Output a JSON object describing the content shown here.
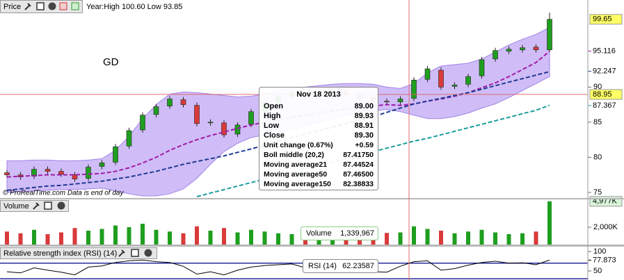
{
  "chart_data": [
    {
      "type": "candlestick",
      "title": "Price",
      "subtitle": "Year:High 100.60 Low 93.85",
      "annotation": "GD",
      "watermark": "© ProRealTime.com  Data is end of day",
      "ylim": [
        74.2,
        102.4
      ],
      "yticks": [
        75,
        80,
        85,
        90
      ],
      "up_color": "#1f9e1f",
      "down_color": "#d93a3a",
      "open": [
        77.8,
        77.5,
        77.3,
        78.3,
        78.0,
        77.5,
        77.0,
        78.7,
        79.3,
        81.6,
        83.9,
        86.1,
        87.3,
        88.2,
        87.4,
        84.9,
        84.9,
        83.3,
        84.7,
        86.6,
        87.7,
        88.7,
        89.1,
        88.8,
        89.1,
        89.2,
        88.8,
        88.5,
        88.0,
        87.9,
        88.4,
        91.1,
        92.4,
        90.1,
        90.4,
        91.6,
        94.0,
        95.1,
        95.3,
        95.7,
        95.3
      ],
      "high": [
        78.2,
        77.9,
        78.7,
        78.7,
        78.4,
        77.9,
        79.0,
        79.6,
        81.9,
        84.2,
        86.4,
        87.6,
        88.7,
        88.6,
        87.8,
        85.4,
        85.3,
        85.0,
        86.9,
        88.2,
        89.0,
        89.6,
        89.5,
        89.4,
        89.7,
        89.6,
        89.2,
        88.9,
        88.4,
        88.7,
        91.4,
        93.0,
        92.8,
        90.7,
        91.9,
        94.3,
        95.6,
        95.8,
        96.0,
        96.1,
        100.6
      ],
      "low": [
        77.1,
        76.8,
        76.9,
        77.6,
        77.2,
        76.5,
        76.6,
        78.3,
        78.9,
        81.2,
        83.5,
        85.7,
        86.9,
        87.1,
        84.4,
        84.5,
        82.8,
        82.9,
        84.3,
        86.2,
        87.3,
        88.3,
        88.3,
        88.4,
        88.7,
        88.5,
        88.0,
        87.7,
        87.5,
        87.5,
        88.0,
        90.7,
        89.6,
        89.7,
        90.0,
        91.2,
        93.6,
        94.7,
        94.9,
        94.9,
        95.0
      ],
      "close": [
        77.5,
        77.2,
        78.3,
        78.0,
        77.6,
        76.9,
        78.6,
        79.2,
        81.5,
        83.8,
        86.0,
        87.2,
        88.3,
        87.5,
        84.8,
        85.0,
        83.2,
        84.6,
        86.5,
        87.8,
        88.6,
        89.2,
        88.7,
        89.0,
        89.3,
        88.9,
        88.4,
        88.1,
        87.9,
        88.3,
        91.0,
        92.6,
        90.0,
        90.3,
        91.5,
        93.9,
        95.2,
        95.4,
        95.6,
        95.3,
        99.65
      ],
      "bands": {
        "color": "#c8b2f6",
        "edge": "#9f84e6",
        "upper": [
          79.5,
          79.5,
          79.6,
          79.6,
          79.5,
          79.5,
          79.6,
          79.8,
          81.0,
          83.0,
          85.5,
          87.5,
          89.0,
          89.3,
          89.2,
          89.0,
          88.8,
          88.6,
          88.7,
          89.0,
          89.4,
          89.8,
          90.0,
          90.2,
          90.4,
          90.5,
          90.5,
          90.4,
          90.0,
          89.8,
          90.5,
          92.0,
          93.0,
          93.2,
          93.4,
          94.0,
          95.0,
          96.0,
          96.8,
          97.5,
          98.5
        ],
        "lower": [
          75.0,
          75.1,
          75.2,
          75.3,
          75.4,
          75.4,
          75.5,
          75.6,
          75.2,
          74.8,
          74.5,
          74.5,
          74.8,
          75.5,
          77.0,
          79.0,
          80.8,
          82.0,
          82.8,
          83.2,
          83.6,
          84.0,
          84.5,
          85.0,
          85.5,
          86.0,
          86.3,
          86.6,
          86.8,
          86.5,
          86.0,
          85.5,
          85.5,
          85.8,
          86.3,
          87.0,
          87.6,
          88.5,
          89.5,
          90.5,
          91.5
        ]
      },
      "series": [
        {
          "color": "#a01ca8",
          "values": [
            77.2,
            77.3,
            77.4,
            77.5,
            77.5,
            77.5,
            77.6,
            77.7,
            78.0,
            78.5,
            79.2,
            80.0,
            81.0,
            81.8,
            82.5,
            83.1,
            83.6,
            84.1,
            84.6,
            85.0,
            85.3,
            85.7,
            86.0,
            86.3,
            86.6,
            86.9,
            87.1,
            87.3,
            87.5,
            87.4,
            87.6,
            88.0,
            88.3,
            88.7,
            89.2,
            89.9,
            90.6,
            91.5,
            92.5,
            93.5,
            95.1
          ]
        },
        {
          "color": "#1f3a93",
          "values": [
            75.3,
            75.5,
            75.7,
            75.9,
            76.0,
            76.2,
            76.4,
            76.6,
            76.9,
            77.2,
            77.6,
            78.0,
            78.5,
            79.0,
            79.4,
            79.8,
            80.2,
            80.7,
            81.2,
            81.7,
            82.3,
            82.8,
            83.3,
            83.8,
            84.3,
            84.8,
            85.3,
            85.8,
            86.4,
            87.0,
            87.6,
            88.0,
            88.4,
            88.8,
            89.2,
            89.7,
            90.2,
            90.7,
            91.2,
            91.7,
            92.2
          ]
        },
        {
          "color": "#1a9c9c",
          "values": [
            null,
            null,
            null,
            null,
            null,
            null,
            null,
            null,
            null,
            null,
            null,
            null,
            null,
            null,
            74.4,
            74.9,
            75.4,
            75.9,
            76.4,
            76.9,
            77.4,
            77.9,
            78.4,
            78.8,
            79.3,
            79.8,
            80.3,
            80.8,
            81.3,
            81.8,
            82.3,
            82.7,
            83.2,
            83.7,
            84.2,
            84.7,
            85.2,
            85.7,
            86.2,
            86.7,
            87.4
          ]
        }
      ],
      "markers": [
        {
          "value": 99.65,
          "label": "99.65",
          "color": "#000000",
          "background": "#ffff66"
        },
        {
          "value": 95.116,
          "label": "95.116",
          "color": "#a01ca8"
        },
        {
          "value": 92.247,
          "label": "92.247",
          "color": "#1f3a93"
        },
        {
          "value": 88.95,
          "label": "88.95",
          "color": "#000000",
          "background": "#ffff66"
        },
        {
          "value": 87.367,
          "label": "87.367",
          "color": "#1a9c9c"
        }
      ]
    },
    {
      "type": "bar",
      "title": "Volume",
      "ylim": [
        0,
        5200
      ],
      "yticks": [
        {
          "value": 2000,
          "label": "2,000K"
        }
      ],
      "values": [
        1500,
        1300,
        1700,
        1200,
        1400,
        1900,
        1600,
        1800,
        2200,
        2000,
        2400,
        1700,
        1500,
        1300,
        2100,
        1600,
        1900,
        1400,
        1700,
        1500,
        1300,
        1200,
        1100,
        1400,
        1000,
        1300,
        1200,
        1500,
        1339,
        1400,
        2100,
        1800,
        1600,
        1300,
        1500,
        1700,
        1400,
        1200,
        1300,
        1500,
        4977
      ],
      "markers": [
        {
          "value": 4977,
          "label": "4,977K",
          "color": "#1f9e1f",
          "background": "#d8f5d8"
        }
      ]
    },
    {
      "type": "line",
      "title": "Relative strength index (RSI) (14)",
      "ylim": [
        26.8,
        112.5
      ],
      "yticks": [
        50,
        100
      ],
      "levels": [
        70,
        30
      ],
      "level_color": "#2a2a9a",
      "color": "#000000",
      "values": [
        48,
        45,
        58,
        52,
        47,
        40,
        60,
        63,
        72,
        76,
        78,
        74,
        72,
        62,
        42,
        48,
        40,
        52,
        60,
        64,
        66,
        68,
        58,
        61,
        63,
        55,
        50,
        48,
        47,
        62.2,
        74,
        76,
        52,
        56,
        65,
        72,
        75,
        70,
        71,
        66,
        77.873
      ],
      "markers": [
        {
          "value": 77.873,
          "label": "77.873",
          "color": "#000000"
        }
      ]
    }
  ],
  "tooltip": {
    "title": "Nov 18 2013",
    "rows": [
      {
        "label": "Open",
        "value": "89.00",
        "color": "#000000"
      },
      {
        "label": "High",
        "value": "89.93",
        "color": "#000000"
      },
      {
        "label": "Low",
        "value": "88.91",
        "color": "#000000"
      },
      {
        "label": "Close",
        "value": "89.30",
        "color": "#000000"
      },
      {
        "label": "Unit change (0.67%)",
        "value": "+0.59",
        "color": "#1f8a1f"
      },
      {
        "label": "Boll middle (20,2)",
        "value": "87.41750",
        "color": "#8a2be2"
      },
      {
        "label": "Moving average21",
        "value": "87.44524",
        "color": "#a01ca8"
      },
      {
        "label": "Moving average50",
        "value": "87.46500",
        "color": "#1f3a93"
      },
      {
        "label": "Moving average150",
        "value": "82.38833",
        "color": "#1a9c9c"
      }
    ]
  },
  "volume_tooltip": {
    "label": "Volume",
    "value": "1,339,967"
  },
  "rsi_tooltip": {
    "label": "RSI (14)",
    "value": "62.23587"
  }
}
